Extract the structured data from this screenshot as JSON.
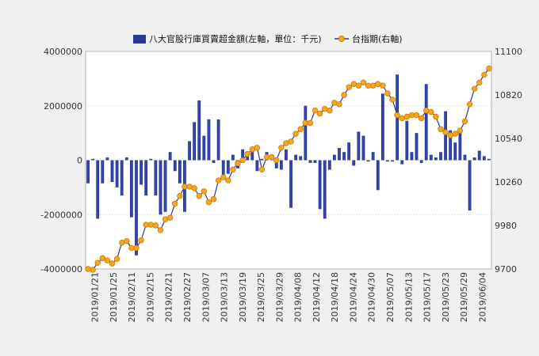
{
  "chart_data": {
    "type": "bar+line",
    "legend": {
      "placement": "top",
      "bar_label": "八大官股行庫買賣超金額(左軸，單位：千元)",
      "line_label": "台指期(右軸)"
    },
    "left_axis": {
      "range": [
        -4000000,
        4000000
      ],
      "ticks": [
        "4000000",
        "2000000",
        "0",
        "-2000000",
        "-4000000"
      ]
    },
    "right_axis": {
      "range": [
        9700,
        11100
      ],
      "ticks": [
        "11100",
        "10820",
        "10540",
        "10260",
        "9980",
        "9700"
      ]
    },
    "grid": true,
    "x_ticks": [
      "2019/01/21",
      "2019/01/25",
      "2019/02/11",
      "2019/02/15",
      "2019/02/21",
      "2019/02/27",
      "2019/03/07",
      "2019/03/13",
      "2019/03/19",
      "2019/03/25",
      "2019/03/29",
      "2019/04/08",
      "2019/04/12",
      "2019/04/18",
      "2019/04/24",
      "2019/04/30",
      "2019/05/07",
      "2019/05/13",
      "2019/05/17",
      "2019/05/23",
      "2019/05/29",
      "2019/06/04"
    ],
    "bar_values": [
      -850000,
      50000,
      -2150000,
      -850000,
      100000,
      -800000,
      -1000000,
      -1300000,
      100000,
      -2100000,
      -3500000,
      -900000,
      -1300000,
      50000,
      -1300000,
      -2000000,
      -1900000,
      300000,
      -400000,
      -850000,
      -1900000,
      700000,
      1400000,
      2200000,
      900000,
      1500000,
      -100000,
      1500000,
      -600000,
      -500000,
      200000,
      -300000,
      400000,
      200000,
      300000,
      -400000,
      50000,
      300000,
      200000,
      -300000,
      -350000,
      400000,
      -1750000,
      200000,
      150000,
      2000000,
      -100000,
      -100000,
      -1800000,
      -2150000,
      -350000,
      200000,
      450000,
      300000,
      650000,
      -200000,
      1050000,
      900000,
      -50000,
      300000,
      -1100000,
      2450000,
      -50000,
      -50000,
      3150000,
      -150000,
      1450000,
      300000,
      1000000,
      -100000,
      2800000,
      200000,
      100000,
      300000,
      1800000,
      1100000,
      650000,
      1000000,
      200000,
      -1850000,
      100000,
      350000,
      150000,
      50000
    ],
    "line_values": [
      9700,
      9695,
      9740,
      9770,
      9755,
      9735,
      9765,
      9870,
      9880,
      9835,
      9835,
      9885,
      9985,
      9985,
      9980,
      9950,
      10020,
      10030,
      10120,
      10170,
      10230,
      10230,
      10220,
      10170,
      10200,
      10130,
      10150,
      10270,
      10290,
      10270,
      10340,
      10380,
      10400,
      10440,
      10470,
      10480,
      10340,
      10420,
      10420,
      10400,
      10480,
      10510,
      10520,
      10570,
      10600,
      10640,
      10640,
      10720,
      10700,
      10730,
      10720,
      10770,
      10760,
      10820,
      10870,
      10890,
      10880,
      10900,
      10880,
      10880,
      10890,
      10880,
      10830,
      10790,
      10690,
      10670,
      10680,
      10690,
      10690,
      10670,
      10720,
      10710,
      10680,
      10600,
      10580,
      10560,
      10570,
      10590,
      10650,
      10760,
      10860,
      10900,
      10950,
      10990
    ]
  }
}
